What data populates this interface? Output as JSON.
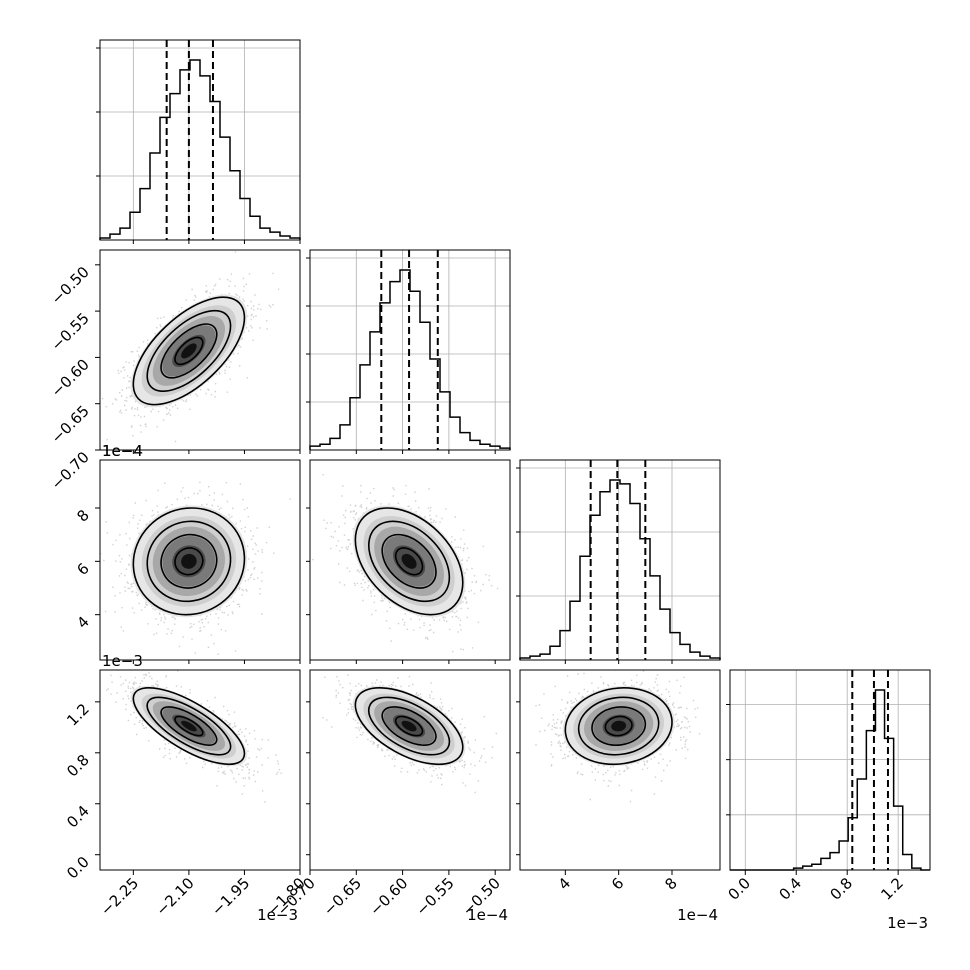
{
  "chart_data": {
    "type": "corner",
    "parameters": [
      {
        "range": [
          -2.34,
          -1.8
        ],
        "ticks": [
          -2.25,
          -2.1,
          -1.95,
          -1.8
        ],
        "tick_labels": [
          "−2.25",
          "−2.10",
          "−1.95",
          "−1.80"
        ],
        "offset": "1e−3",
        "quantiles": [
          -2.16,
          -2.1,
          -2.035
        ]
      },
      {
        "range": [
          -0.7,
          -0.484
        ],
        "ticks": [
          -0.7,
          -0.65,
          -0.6,
          -0.55,
          -0.5
        ],
        "tick_labels": [
          "−0.70",
          "−0.65",
          "−0.60",
          "−0.55",
          "−0.50"
        ],
        "offset": "1e−4",
        "quantiles": [
          -0.623,
          -0.593,
          -0.562
        ]
      },
      {
        "range": [
          2.3,
          9.8
        ],
        "ticks": [
          4,
          6,
          8
        ],
        "tick_labels": [
          "4",
          "6",
          "8"
        ],
        "offset": "1e−4",
        "quantiles": [
          4.95,
          5.95,
          7.0
        ]
      },
      {
        "range": [
          -0.12,
          1.45
        ],
        "ticks": [
          0.0,
          0.4,
          0.8,
          1.2
        ],
        "tick_labels": [
          "0.0",
          "0.4",
          "0.8",
          "1.2"
        ],
        "offset": "1e−3",
        "quantiles": [
          0.84,
          1.01,
          1.12
        ]
      }
    ],
    "histograms": [
      [
        1,
        3,
        6,
        14,
        26,
        44,
        62,
        74,
        86,
        91,
        83,
        70,
        52,
        35,
        21,
        12,
        6,
        4,
        2,
        1
      ],
      [
        2,
        3,
        6,
        13,
        27,
        44,
        61,
        76,
        87,
        93,
        82,
        66,
        47,
        30,
        17,
        9,
        5,
        3,
        2,
        1
      ],
      [
        1,
        2,
        3,
        7,
        15,
        30,
        53,
        74,
        86,
        92,
        90,
        80,
        62,
        43,
        26,
        14,
        8,
        4,
        2,
        1
      ],
      [
        0,
        0,
        0,
        0,
        0,
        0,
        0,
        1,
        2,
        3,
        6,
        9,
        15,
        27,
        47,
        72,
        93,
        68,
        33,
        8,
        1,
        0
      ]
    ],
    "hist_ymax": [
      1.0,
      1.0,
      1.0,
      1.45
    ],
    "hist_grid": [
      [
        0.32,
        0.64,
        0.96
      ],
      [
        0.24,
        0.48,
        0.72,
        0.96
      ],
      [
        0.32,
        0.64,
        0.96
      ],
      [
        0.4,
        0.8,
        1.2
      ]
    ],
    "pairs": [
      {
        "row": 1,
        "col": 0,
        "mean": [
          -2.1,
          -0.593
        ],
        "sd": [
          0.075,
          0.029
        ],
        "rho": 0.62
      },
      {
        "row": 2,
        "col": 0,
        "mean": [
          -2.1,
          6.0
        ],
        "sd": [
          0.075,
          1.0
        ],
        "rho": 0.05
      },
      {
        "row": 2,
        "col": 1,
        "mean": [
          -0.593,
          6.0
        ],
        "sd": [
          0.029,
          1.0
        ],
        "rho": -0.4
      },
      {
        "row": 3,
        "col": 0,
        "mean": [
          -2.1,
          1.01
        ],
        "sd": [
          0.075,
          0.15
        ],
        "rho": -0.72
      },
      {
        "row": 3,
        "col": 1,
        "mean": [
          -0.593,
          1.01
        ],
        "sd": [
          0.029,
          0.15
        ],
        "rho": -0.55
      },
      {
        "row": 3,
        "col": 2,
        "mean": [
          6.0,
          1.01
        ],
        "sd": [
          1.0,
          0.15
        ],
        "rho": 0.1
      }
    ],
    "contour_levels": [
      0.5,
      1.0,
      1.5,
      2.0
    ],
    "grid": true
  }
}
